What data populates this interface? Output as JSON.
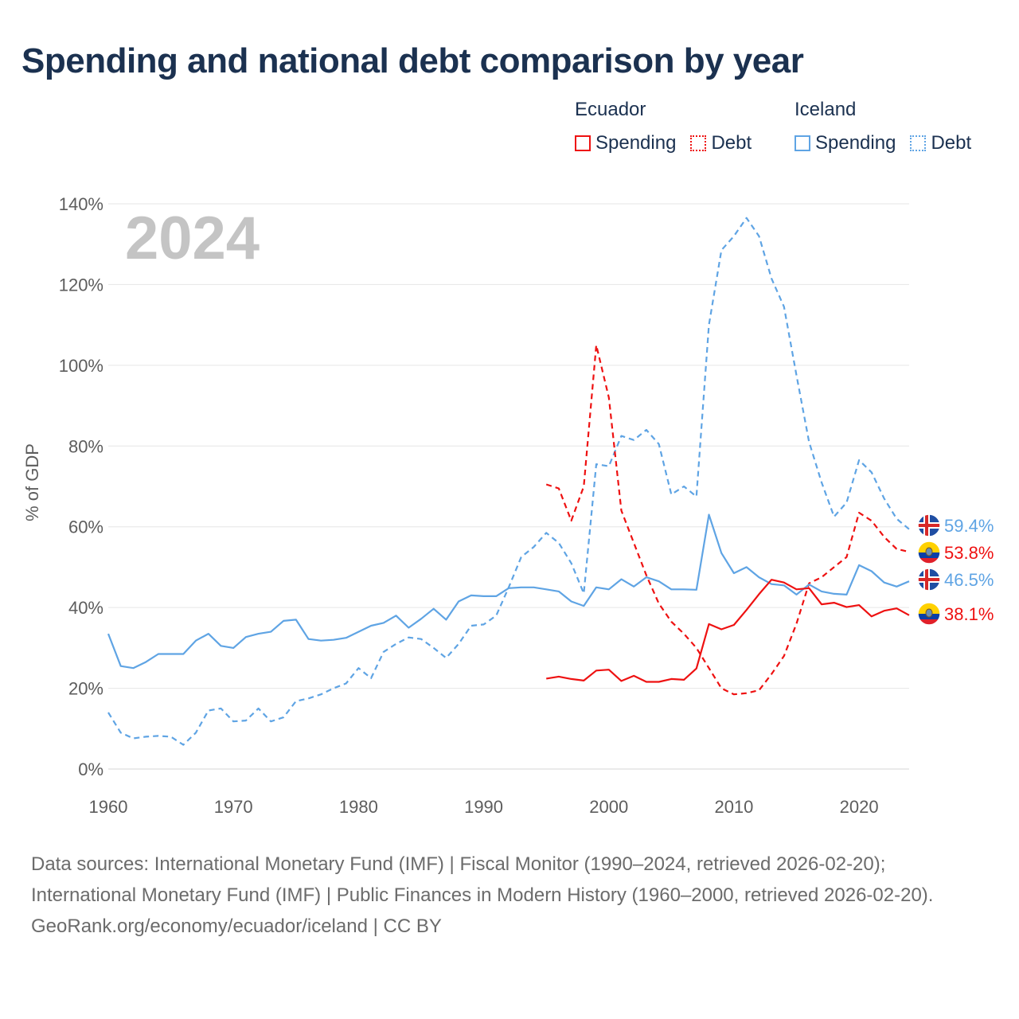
{
  "title": "Spending and national debt comparison by year",
  "legend": {
    "groups": [
      {
        "name": "Ecuador",
        "color": "#ee1111",
        "items": [
          {
            "label": "Spending",
            "style": "solid"
          },
          {
            "label": "Debt",
            "style": "dotted"
          }
        ]
      },
      {
        "name": "Iceland",
        "color": "#5fa4e4",
        "items": [
          {
            "label": "Spending",
            "style": "solid"
          },
          {
            "label": "Debt",
            "style": "dotted"
          }
        ]
      }
    ]
  },
  "year_watermark": "2024",
  "footer": {
    "sources": "Data sources: International Monetary Fund (IMF) | Fiscal Monitor (1990–2024, retrieved 2026-02-20); International Monetary Fund (IMF) | Public Finances in Modern History (1960–2000, retrieved 2026-02-20).",
    "credit": "GeoRank.org/economy/ecuador/iceland | CC BY"
  },
  "chart_data": {
    "type": "line",
    "title": "Spending and national debt comparison by year",
    "xlabel": "",
    "ylabel": "% of GDP",
    "xlim": [
      1960,
      2024
    ],
    "ylim": [
      0,
      140
    ],
    "x_ticks": [
      1960,
      1970,
      1980,
      1990,
      2000,
      2010,
      2020
    ],
    "y_ticks": [
      0,
      20,
      40,
      60,
      80,
      100,
      120,
      140
    ],
    "y_tick_labels": [
      "0%",
      "20%",
      "40%",
      "60%",
      "80%",
      "100%",
      "120%",
      "140%"
    ],
    "grid": true,
    "series": [
      {
        "name": "Iceland Debt",
        "country": "Iceland",
        "measure": "Debt",
        "color": "#5fa4e4",
        "dash": "dashed",
        "end_label": "59.4%",
        "flag": "iceland",
        "x": [
          1960,
          1961,
          1962,
          1963,
          1964,
          1965,
          1966,
          1967,
          1968,
          1969,
          1970,
          1971,
          1972,
          1973,
          1974,
          1975,
          1976,
          1977,
          1978,
          1979,
          1980,
          1981,
          1982,
          1983,
          1984,
          1985,
          1986,
          1987,
          1988,
          1989,
          1990,
          1991,
          1992,
          1993,
          1994,
          1995,
          1996,
          1997,
          1998,
          1999,
          2000,
          2001,
          2002,
          2003,
          2004,
          2005,
          2006,
          2007,
          2008,
          2009,
          2010,
          2011,
          2012,
          2013,
          2014,
          2015,
          2016,
          2017,
          2018,
          2019,
          2020,
          2021,
          2022,
          2023,
          2024
        ],
        "values": [
          14,
          9,
          7.6,
          8,
          8.2,
          8,
          6,
          9,
          14.5,
          15,
          11.8,
          12,
          15,
          11.8,
          12.8,
          16.8,
          17.5,
          18.5,
          20,
          21.2,
          25,
          22.5,
          29,
          31,
          32.6,
          32.2,
          30,
          27.5,
          31,
          35.5,
          35.8,
          38,
          45,
          52.5,
          55,
          58.5,
          56,
          51,
          43.5,
          75.5,
          75,
          82.5,
          81.5,
          84,
          80.5,
          68,
          70,
          67.5,
          110,
          128.5,
          132,
          136.5,
          132,
          121.5,
          114.5,
          97.5,
          81,
          71,
          62.5,
          66,
          76.5,
          73.5,
          67,
          62,
          59.4
        ]
      },
      {
        "name": "Ecuador Debt",
        "country": "Ecuador",
        "measure": "Debt",
        "color": "#ee1111",
        "dash": "dashed",
        "end_label": "53.8%",
        "flag": "ecuador",
        "x": [
          1995,
          1996,
          1997,
          1998,
          1999,
          2000,
          2001,
          2002,
          2003,
          2004,
          2005,
          2006,
          2007,
          2008,
          2009,
          2010,
          2011,
          2012,
          2013,
          2014,
          2015,
          2016,
          2017,
          2018,
          2019,
          2020,
          2021,
          2022,
          2023,
          2024
        ],
        "values": [
          70.5,
          69.5,
          61.5,
          70,
          105,
          92,
          64,
          56,
          48,
          41,
          36.5,
          33.5,
          30,
          25,
          20,
          18.5,
          18.8,
          19.5,
          23.5,
          28,
          36,
          46,
          47.5,
          50,
          52.5,
          63.5,
          61.5,
          57.5,
          54.5,
          53.8
        ]
      },
      {
        "name": "Iceland Spending",
        "country": "Iceland",
        "measure": "Spending",
        "color": "#5fa4e4",
        "dash": "solid",
        "end_label": "46.5%",
        "flag": "iceland",
        "x": [
          1960,
          1961,
          1962,
          1963,
          1964,
          1965,
          1966,
          1967,
          1968,
          1969,
          1970,
          1971,
          1972,
          1973,
          1974,
          1975,
          1976,
          1977,
          1978,
          1979,
          1980,
          1981,
          1982,
          1983,
          1984,
          1985,
          1986,
          1987,
          1988,
          1989,
          1990,
          1991,
          1992,
          1993,
          1994,
          1995,
          1996,
          1997,
          1998,
          1999,
          2000,
          2001,
          2002,
          2003,
          2004,
          2005,
          2006,
          2007,
          2008,
          2009,
          2010,
          2011,
          2012,
          2013,
          2014,
          2015,
          2016,
          2017,
          2018,
          2019,
          2020,
          2021,
          2022,
          2023,
          2024
        ],
        "values": [
          33.5,
          25.5,
          25,
          26.5,
          28.5,
          28.5,
          28.5,
          31.8,
          33.5,
          30.5,
          30,
          32.7,
          33.5,
          34,
          36.7,
          37,
          32.2,
          31.8,
          32,
          32.5,
          34,
          35.5,
          36.2,
          38,
          35,
          37.2,
          39.7,
          37,
          41.5,
          43,
          42.8,
          42.8,
          44.8,
          45,
          45,
          44.5,
          44,
          41.5,
          40.4,
          45,
          44.5,
          47,
          45.2,
          47.5,
          46.5,
          44.5,
          44.5,
          44.4,
          63,
          53.5,
          48.5,
          50,
          47.5,
          45.8,
          45.5,
          43.2,
          45.7,
          44,
          43.4,
          43.2,
          50.5,
          49,
          46.2,
          45.2,
          46.5
        ]
      },
      {
        "name": "Ecuador Spending",
        "country": "Ecuador",
        "measure": "Spending",
        "color": "#ee1111",
        "dash": "solid",
        "end_label": "38.1%",
        "flag": "ecuador",
        "x": [
          1995,
          1996,
          1997,
          1998,
          1999,
          2000,
          2001,
          2002,
          2003,
          2004,
          2005,
          2006,
          2007,
          2008,
          2009,
          2010,
          2011,
          2012,
          2013,
          2014,
          2015,
          2016,
          2017,
          2018,
          2019,
          2020,
          2021,
          2022,
          2023,
          2024
        ],
        "values": [
          22.4,
          22.9,
          22.3,
          21.9,
          24.4,
          24.6,
          21.8,
          23.1,
          21.6,
          21.6,
          22.3,
          22.1,
          24.9,
          35.9,
          34.6,
          35.7,
          39.4,
          43.3,
          46.9,
          46.2,
          44.5,
          44.8,
          40.8,
          41.2,
          40.1,
          40.6,
          37.8,
          39.2,
          39.8,
          38.1
        ]
      }
    ]
  }
}
